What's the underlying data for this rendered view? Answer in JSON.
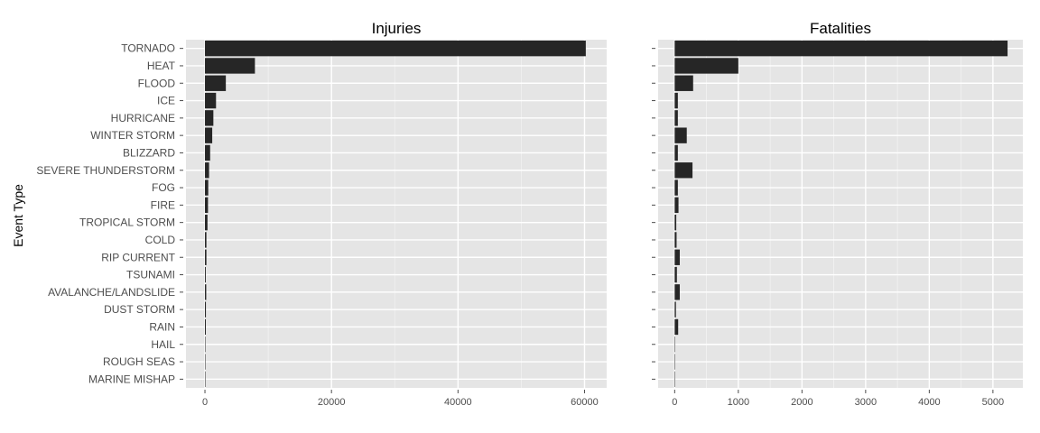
{
  "chart_data": {
    "type": "bar",
    "orientation": "horizontal",
    "ylabel": "Event Type",
    "xlabel": "",
    "grid": true,
    "legend": "none",
    "colors": {
      "bar": "#262626",
      "panel": "#e5e5e5",
      "grid": "#ffffff"
    },
    "categories": [
      "TORNADO",
      "HEAT",
      "FLOOD",
      "ICE",
      "HURRICANE",
      "WINTER STORM",
      "BLIZZARD",
      "SEVERE THUNDERSTORM",
      "FOG",
      "FIRE",
      "TROPICAL STORM",
      "COLD",
      "RIP CURRENT",
      "TSUNAMI",
      "AVALANCHE/LANDSLIDE",
      "DUST STORM",
      "RAIN",
      "HAIL",
      "ROUGH SEAS",
      "MARINE MISHAP"
    ],
    "panels": [
      {
        "title": "Injuries",
        "xlim": [
          -3000,
          63500
        ],
        "xticks": [
          0,
          20000,
          40000,
          60000
        ],
        "values": [
          60200,
          7900,
          3300,
          1750,
          1330,
          1150,
          820,
          650,
          520,
          480,
          400,
          230,
          230,
          130,
          200,
          150,
          140,
          30,
          10,
          5
        ]
      },
      {
        "title": "Fatalities",
        "xlim": [
          -260,
          5470
        ],
        "xticks": [
          0,
          1000,
          2000,
          3000,
          4000,
          5000
        ],
        "values": [
          5230,
          1000,
          290,
          50,
          50,
          190,
          50,
          280,
          50,
          60,
          25,
          30,
          80,
          35,
          80,
          20,
          55,
          5,
          3,
          2
        ]
      }
    ]
  }
}
